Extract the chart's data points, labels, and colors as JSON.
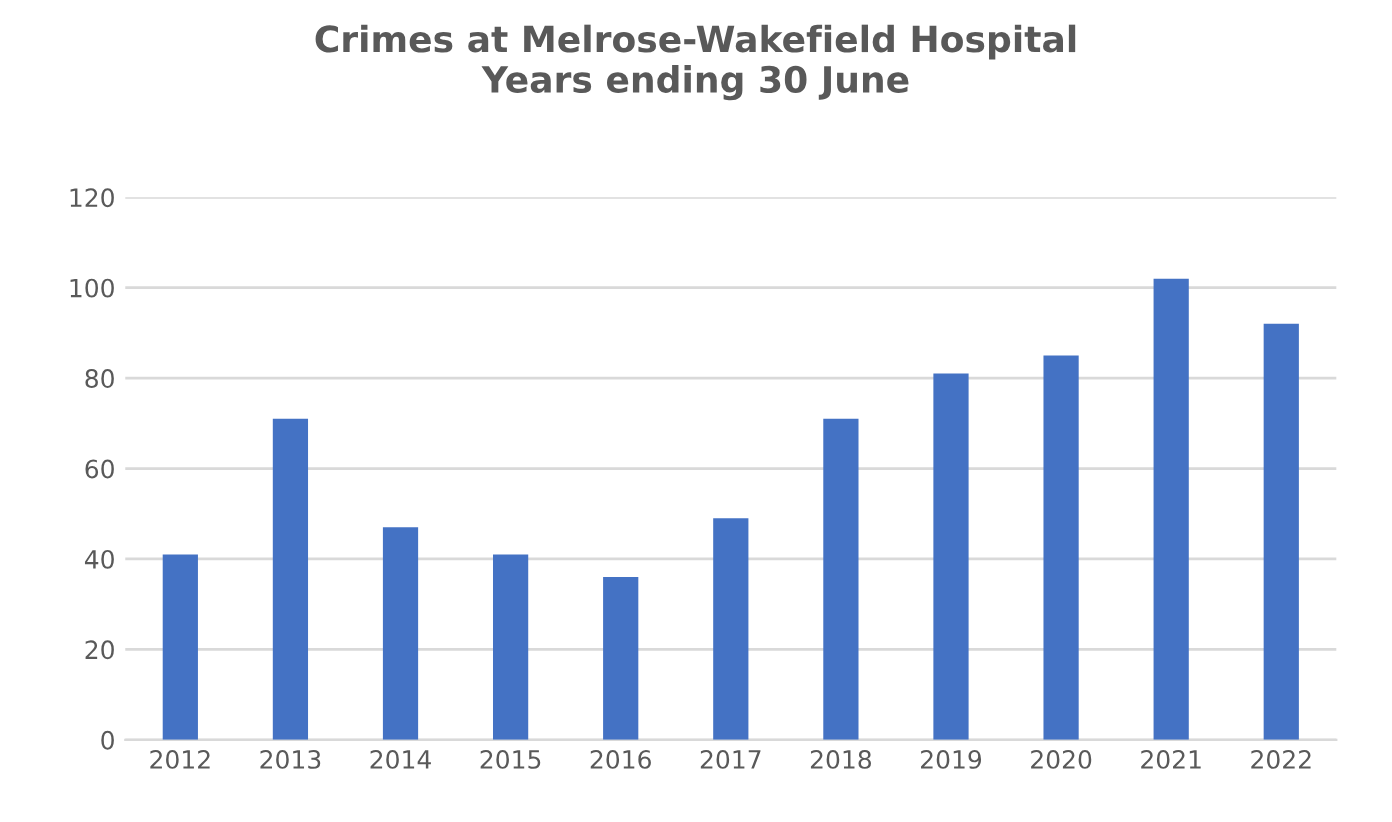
{
  "chart_data": {
    "type": "bar",
    "title": "Crimes at Melrose-Wakefield Hospital\nYears ending 30 June",
    "categories": [
      "2012",
      "2013",
      "2014",
      "2015",
      "2016",
      "2017",
      "2018",
      "2019",
      "2020",
      "2021",
      "2022"
    ],
    "values": [
      41,
      71,
      47,
      41,
      36,
      49,
      71,
      81,
      85,
      102,
      92
    ],
    "color": "#4472c4",
    "ylim": [
      0,
      120
    ],
    "yticks": [
      0,
      20,
      40,
      60,
      80,
      100,
      120
    ],
    "grid": "y",
    "legend": false
  }
}
